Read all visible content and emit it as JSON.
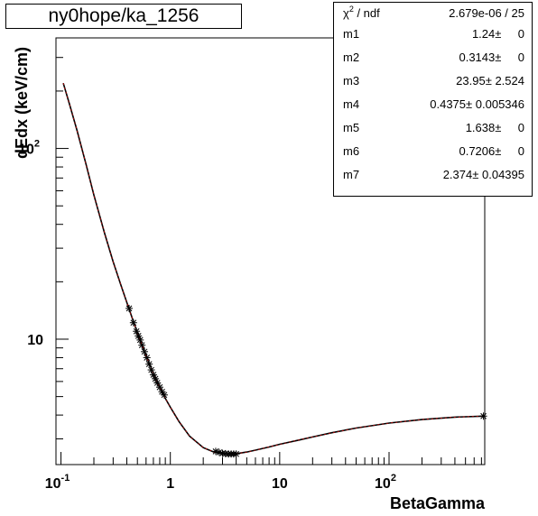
{
  "chart_data": {
    "type": "scatter",
    "title": "ny0hope/ka_1256",
    "xlabel": "BetaGamma",
    "ylabel": "dEdx (keV/cm)",
    "xscale": "log",
    "yscale": "log",
    "xlim": [
      0.09,
      750
    ],
    "ylim": [
      2.2,
      380
    ],
    "x_ticks": [
      {
        "value": 0.1,
        "base": "10",
        "exp": "-1"
      },
      {
        "value": 1,
        "base": "1",
        "exp": ""
      },
      {
        "value": 10,
        "base": "10",
        "exp": ""
      },
      {
        "value": 100,
        "base": "10",
        "exp": "2"
      }
    ],
    "y_ticks": [
      {
        "value": 10,
        "base": "10",
        "exp": ""
      },
      {
        "value": 100,
        "base": "10",
        "exp": "2"
      }
    ],
    "grid": false,
    "legend": "none",
    "series": [
      {
        "kind": "points",
        "marker": "asterisk",
        "color": "#000000",
        "x": [
          0.42,
          0.46,
          0.49,
          0.51,
          0.53,
          0.55,
          0.58,
          0.61,
          0.64,
          0.67,
          0.7,
          0.73,
          0.76,
          0.8,
          0.84,
          0.88,
          2.6,
          2.8,
          3.0,
          3.2,
          3.4,
          3.6,
          3.8,
          4.0,
          730
        ],
        "y": [
          14.5,
          12.2,
          11.0,
          10.4,
          9.9,
          9.3,
          8.6,
          8.0,
          7.4,
          6.9,
          6.5,
          6.2,
          5.9,
          5.6,
          5.3,
          5.1,
          2.58,
          2.55,
          2.52,
          2.51,
          2.5,
          2.5,
          2.5,
          2.5,
          3.95
        ]
      },
      {
        "kind": "curve",
        "color": "#000000",
        "dash_color": "#ff0000",
        "x": [
          0.105,
          0.12,
          0.14,
          0.17,
          0.2,
          0.25,
          0.3,
          0.35,
          0.4,
          0.45,
          0.5,
          0.6,
          0.7,
          0.8,
          0.9,
          1.0,
          1.2,
          1.5,
          2.0,
          2.5,
          3.0,
          3.5,
          4.0,
          5.0,
          6.0,
          8.0,
          10,
          15,
          20,
          30,
          50,
          100,
          200,
          400,
          730
        ],
        "y": [
          220,
          170,
          125,
          82,
          57,
          36,
          25.5,
          19.5,
          15.6,
          12.8,
          10.8,
          8.2,
          6.6,
          5.6,
          4.9,
          4.4,
          3.7,
          3.1,
          2.7,
          2.56,
          2.51,
          2.5,
          2.51,
          2.56,
          2.62,
          2.72,
          2.81,
          2.96,
          3.07,
          3.23,
          3.42,
          3.63,
          3.79,
          3.9,
          3.95
        ]
      }
    ]
  },
  "stats": {
    "chi_label_pre": "χ",
    "chi_label_sup": "2",
    "chi_label_post": " / ndf",
    "chi_value": "2.679e-06 / 25",
    "params": [
      {
        "name": "m1",
        "value": "1.24",
        "error": "0"
      },
      {
        "name": "m2",
        "value": "0.3143",
        "error": "0"
      },
      {
        "name": "m3",
        "value": "23.95",
        "error": "2.524"
      },
      {
        "name": "m4",
        "value": "0.4375",
        "error": "0.005346"
      },
      {
        "name": "m5",
        "value": "1.638",
        "error": "0"
      },
      {
        "name": "m6",
        "value": "0.7206",
        "error": "0"
      },
      {
        "name": "m7",
        "value": "2.374",
        "error": "0.04395"
      }
    ],
    "pm": "±"
  }
}
